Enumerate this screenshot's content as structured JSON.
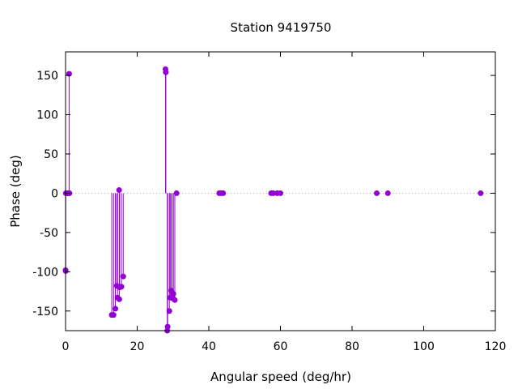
{
  "chart_data": {
    "type": "scatter",
    "style": "impulses-with-points",
    "title": "Station 9419750",
    "xlabel": "Angular speed (deg/hr)",
    "ylabel": "Phase (deg)",
    "xlim": [
      0,
      120
    ],
    "ylim": [
      -175,
      180
    ],
    "xticks": [
      0,
      20,
      40,
      60,
      80,
      100,
      120
    ],
    "yticks": [
      -150,
      -100,
      -50,
      0,
      50,
      100,
      150
    ],
    "zero_line": true,
    "grid": false,
    "legend": "none",
    "series": [
      {
        "color": "#9400d3",
        "points": [
          {
            "x": 0.0,
            "y": -98
          },
          {
            "x": 0.04,
            "y": -99
          },
          {
            "x": 0.08,
            "y": 0
          },
          {
            "x": 0.5,
            "y": 0
          },
          {
            "x": 0.6,
            "y": 0
          },
          {
            "x": 0.9,
            "y": 0
          },
          {
            "x": 1.0,
            "y": 152
          },
          {
            "x": 1.1,
            "y": 0
          },
          {
            "x": 12.9,
            "y": -155
          },
          {
            "x": 13.4,
            "y": -155
          },
          {
            "x": 13.9,
            "y": -147
          },
          {
            "x": 14.3,
            "y": -118
          },
          {
            "x": 14.5,
            "y": -133
          },
          {
            "x": 14.96,
            "y": 4
          },
          {
            "x": 15.0,
            "y": -135
          },
          {
            "x": 15.1,
            "y": -120
          },
          {
            "x": 15.6,
            "y": -119
          },
          {
            "x": 16.1,
            "y": -106
          },
          {
            "x": 27.9,
            "y": 158
          },
          {
            "x": 28.0,
            "y": 154
          },
          {
            "x": 28.4,
            "y": -175
          },
          {
            "x": 28.5,
            "y": -170
          },
          {
            "x": 28.98,
            "y": -150
          },
          {
            "x": 29.2,
            "y": -133
          },
          {
            "x": 29.5,
            "y": -124
          },
          {
            "x": 30.0,
            "y": -134
          },
          {
            "x": 30.1,
            "y": -128
          },
          {
            "x": 30.5,
            "y": -136
          },
          {
            "x": 31.0,
            "y": 0
          },
          {
            "x": 42.9,
            "y": 0
          },
          {
            "x": 43.5,
            "y": 0
          },
          {
            "x": 44.0,
            "y": 0
          },
          {
            "x": 57.4,
            "y": 0
          },
          {
            "x": 58.0,
            "y": 0
          },
          {
            "x": 59.1,
            "y": 0
          },
          {
            "x": 60.0,
            "y": 0
          },
          {
            "x": 86.9,
            "y": 0
          },
          {
            "x": 90.0,
            "y": 0
          },
          {
            "x": 115.9,
            "y": 0
          }
        ]
      }
    ]
  }
}
